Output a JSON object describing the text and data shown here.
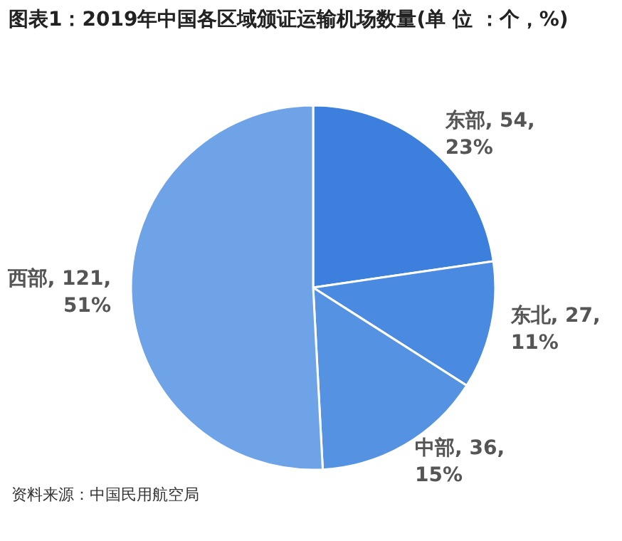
{
  "chart_data": {
    "type": "pie",
    "title": "图表1：2019年中国各区域颁证运输机场数量(单 位 ：个，%)",
    "categories": [
      "东部",
      "东北",
      "中部",
      "西部"
    ],
    "values": [
      54,
      27,
      36,
      121
    ],
    "value_labels": [
      ", 54, 23%",
      ", 27, 11%",
      ", 36, 15%",
      ", 121, 51%"
    ],
    "colors": [
      "#3d7fdc",
      "#4a8ae0",
      "#5592e2",
      "#6ea3e8"
    ],
    "annotations": [
      "资料来源：中国民用航空局"
    ]
  }
}
